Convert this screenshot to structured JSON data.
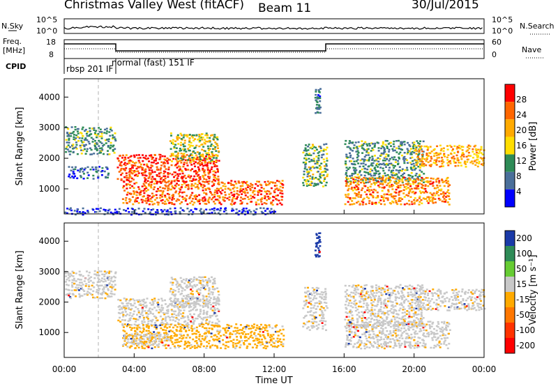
{
  "header": {
    "site": "Christmas Valley West (fitACF)",
    "beam": "Beam 11",
    "date": "30/Jul/2015"
  },
  "panels": {
    "nsky_label": "N.Sky",
    "nsearch_label": "N.Search",
    "nsky_ticks": [
      "10^5",
      "10^0"
    ],
    "nsearch_ticks": [
      "10^5",
      "10^0"
    ],
    "freq_label_1": "Freq.",
    "freq_label_2": "[MHz]",
    "freq_ticks": [
      "18",
      "8"
    ],
    "nave_label": "Nave",
    "nave_ticks": [
      "60",
      "0"
    ],
    "cpid_label": "CPID",
    "cpid_1": "rbsp  201  IF",
    "cpid_2": "normal  (fast)  151  IF"
  },
  "chart_data": [
    {
      "type": "heatmap",
      "name": "Power",
      "ylabel": "Slant Range [km]",
      "ylim": [
        180,
        4600
      ],
      "yticks": [
        "1000",
        "2000",
        "3000",
        "4000"
      ],
      "colorbar_label": "Power [dB]",
      "colorbar_ticks": [
        "28",
        "24",
        "20",
        "16",
        "12",
        "8",
        "4"
      ],
      "colorbar_colors": [
        "#ff0000",
        "#ff6600",
        "#ffaa00",
        "#ffdd00",
        "#2e8b57",
        "#4a6f9a",
        "#0000ff"
      ],
      "bands": [
        {
          "x0": 0.0,
          "x1": 2.9,
          "r0": 2150,
          "r1": 3050,
          "level": 12
        },
        {
          "x0": 0.2,
          "x1": 2.5,
          "r0": 1350,
          "r1": 1750,
          "level": 8
        },
        {
          "x0": 3.0,
          "x1": 8.8,
          "r0": 1250,
          "r1": 2150,
          "level": 26
        },
        {
          "x0": 6.0,
          "x1": 8.8,
          "r0": 1900,
          "r1": 2850,
          "level": 16
        },
        {
          "x0": 3.3,
          "x1": 12.5,
          "r0": 500,
          "r1": 1300,
          "level": 24
        },
        {
          "x0": 13.6,
          "x1": 15.0,
          "r0": 1100,
          "r1": 2500,
          "level": 14
        },
        {
          "x0": 16.0,
          "x1": 20.5,
          "r0": 1200,
          "r1": 2600,
          "level": 12
        },
        {
          "x0": 16.0,
          "x1": 22.0,
          "r0": 500,
          "r1": 1400,
          "level": 22
        },
        {
          "x0": 20.0,
          "x1": 24.0,
          "r0": 1750,
          "r1": 2450,
          "level": 20
        },
        {
          "x0": 0.0,
          "x1": 12.0,
          "r0": 180,
          "r1": 400,
          "level": 6
        },
        {
          "x0": 14.3,
          "x1": 14.6,
          "r0": 3500,
          "r1": 4300,
          "level": 10
        }
      ]
    },
    {
      "type": "heatmap",
      "name": "Velocity",
      "ylabel": "Slant Range [km]",
      "ylim": [
        180,
        4600
      ],
      "yticks": [
        "1000",
        "2000",
        "3000",
        "4000"
      ],
      "colorbar_label": "Velocity [m s⁻¹]",
      "colorbar_ticks": [
        "200",
        "100",
        "50",
        "15",
        "-15",
        "-50",
        "-100",
        "-200"
      ],
      "colorbar_colors": [
        "#1a3aa8",
        "#2e8b57",
        "#66cc33",
        "#c8c8c8",
        "#ffaa00",
        "#ff7700",
        "#ff3300",
        "#ff0000"
      ],
      "bands": [
        {
          "x0": 0.0,
          "x1": 2.9,
          "r0": 2150,
          "r1": 3050,
          "level": 0
        },
        {
          "x0": 3.0,
          "x1": 8.8,
          "r0": 1250,
          "r1": 2150,
          "level": 0
        },
        {
          "x0": 6.0,
          "x1": 8.8,
          "r0": 1900,
          "r1": 2850,
          "level": 0
        },
        {
          "x0": 3.3,
          "x1": 12.5,
          "r0": 500,
          "r1": 1300,
          "level": -30
        },
        {
          "x0": 3.3,
          "x1": 6.0,
          "r0": 600,
          "r1": 1000,
          "level": 0
        },
        {
          "x0": 13.6,
          "x1": 15.0,
          "r0": 1100,
          "r1": 2500,
          "level": 0
        },
        {
          "x0": 16.0,
          "x1": 22.0,
          "r0": 500,
          "r1": 1400,
          "level": 0
        },
        {
          "x0": 16.0,
          "x1": 20.5,
          "r0": 1200,
          "r1": 2600,
          "level": 0
        },
        {
          "x0": 20.0,
          "x1": 24.0,
          "r0": 1750,
          "r1": 2450,
          "level": 0
        },
        {
          "x0": 14.3,
          "x1": 14.6,
          "r0": 3500,
          "r1": 4300,
          "level": 200
        }
      ]
    }
  ],
  "xaxis": {
    "label": "Time UT",
    "ticks": [
      "00:00",
      "04:00",
      "08:00",
      "12:00",
      "16:00",
      "20:00",
      "00:00"
    ]
  },
  "colors": {
    "background": "#ffffff",
    "axis": "#000000",
    "scan_boundary": "#b0b0b0"
  }
}
